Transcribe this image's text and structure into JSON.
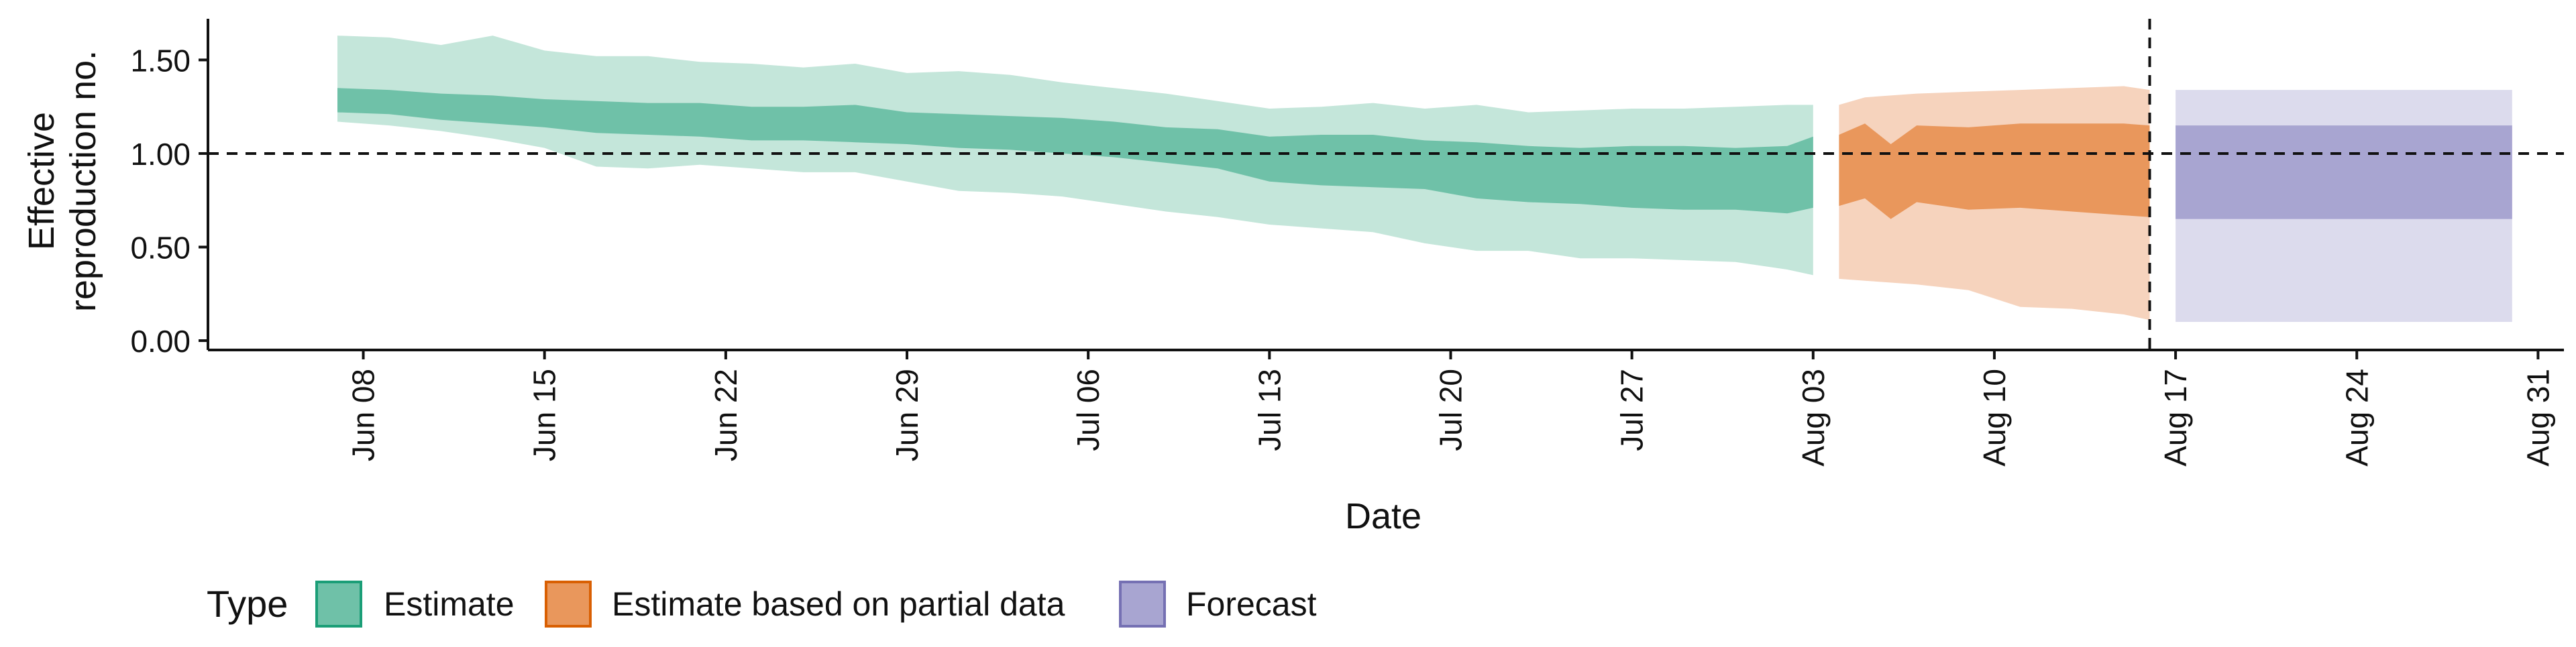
{
  "chart_data": {
    "type": "area",
    "xlabel": "Date",
    "ylabel_lines": [
      "Effective",
      "reproduction no."
    ],
    "x_axis_type": "date",
    "xlim": [
      "2020-06-02",
      "2020-09-01"
    ],
    "ylim": [
      -0.05,
      1.72
    ],
    "x_ticks": [
      {
        "date": "2020-06-08",
        "label": "Jun 08"
      },
      {
        "date": "2020-06-15",
        "label": "Jun 15"
      },
      {
        "date": "2020-06-22",
        "label": "Jun 22"
      },
      {
        "date": "2020-06-29",
        "label": "Jun 29"
      },
      {
        "date": "2020-07-06",
        "label": "Jul 06"
      },
      {
        "date": "2020-07-13",
        "label": "Jul 13"
      },
      {
        "date": "2020-07-20",
        "label": "Jul 20"
      },
      {
        "date": "2020-07-27",
        "label": "Jul 27"
      },
      {
        "date": "2020-08-03",
        "label": "Aug 03"
      },
      {
        "date": "2020-08-10",
        "label": "Aug 10"
      },
      {
        "date": "2020-08-17",
        "label": "Aug 17"
      },
      {
        "date": "2020-08-24",
        "label": "Aug 24"
      },
      {
        "date": "2020-08-31",
        "label": "Aug 31"
      }
    ],
    "y_ticks": [
      {
        "value": 0.0,
        "label": "0.00"
      },
      {
        "value": 0.5,
        "label": "0.50"
      },
      {
        "value": 1.0,
        "label": "1.00"
      },
      {
        "value": 1.5,
        "label": "1.50"
      }
    ],
    "reference_line_y": 1.0,
    "reference_line_x": "2020-08-16",
    "grid": false,
    "legend": {
      "title": "Type",
      "position": "bottom-left",
      "entries": [
        {
          "name": "Estimate",
          "fill": "#6fc1a8",
          "stroke": "#1b9e77"
        },
        {
          "name": "Estimate based on partial data",
          "fill": "#e9975c",
          "stroke": "#d95f02"
        },
        {
          "name": "Forecast",
          "fill": "#a8a5d1",
          "stroke": "#7570b3"
        }
      ]
    },
    "series": [
      {
        "name": "Estimate",
        "fill_inner": "#6fc1a8",
        "fill_outer": "#c4e6da",
        "points": [
          {
            "date": "2020-06-07",
            "outer_low": 1.17,
            "inner_low": 1.22,
            "inner_high": 1.35,
            "outer_high": 1.63
          },
          {
            "date": "2020-06-09",
            "outer_low": 1.15,
            "inner_low": 1.21,
            "inner_high": 1.34,
            "outer_high": 1.62
          },
          {
            "date": "2020-06-11",
            "outer_low": 1.12,
            "inner_low": 1.18,
            "inner_high": 1.32,
            "outer_high": 1.58
          },
          {
            "date": "2020-06-13",
            "outer_low": 1.08,
            "inner_low": 1.16,
            "inner_high": 1.31,
            "outer_high": 1.63
          },
          {
            "date": "2020-06-15",
            "outer_low": 1.03,
            "inner_low": 1.14,
            "inner_high": 1.29,
            "outer_high": 1.55
          },
          {
            "date": "2020-06-17",
            "outer_low": 0.93,
            "inner_low": 1.11,
            "inner_high": 1.28,
            "outer_high": 1.52
          },
          {
            "date": "2020-06-19",
            "outer_low": 0.92,
            "inner_low": 1.1,
            "inner_high": 1.27,
            "outer_high": 1.52
          },
          {
            "date": "2020-06-21",
            "outer_low": 0.94,
            "inner_low": 1.09,
            "inner_high": 1.27,
            "outer_high": 1.49
          },
          {
            "date": "2020-06-23",
            "outer_low": 0.92,
            "inner_low": 1.07,
            "inner_high": 1.25,
            "outer_high": 1.48
          },
          {
            "date": "2020-06-25",
            "outer_low": 0.9,
            "inner_low": 1.07,
            "inner_high": 1.25,
            "outer_high": 1.46
          },
          {
            "date": "2020-06-27",
            "outer_low": 0.9,
            "inner_low": 1.06,
            "inner_high": 1.26,
            "outer_high": 1.48
          },
          {
            "date": "2020-06-29",
            "outer_low": 0.85,
            "inner_low": 1.05,
            "inner_high": 1.22,
            "outer_high": 1.43
          },
          {
            "date": "2020-07-01",
            "outer_low": 0.8,
            "inner_low": 1.03,
            "inner_high": 1.21,
            "outer_high": 1.44
          },
          {
            "date": "2020-07-03",
            "outer_low": 0.79,
            "inner_low": 1.02,
            "inner_high": 1.2,
            "outer_high": 1.42
          },
          {
            "date": "2020-07-05",
            "outer_low": 0.77,
            "inner_low": 1.0,
            "inner_high": 1.19,
            "outer_high": 1.38
          },
          {
            "date": "2020-07-07",
            "outer_low": 0.73,
            "inner_low": 0.98,
            "inner_high": 1.17,
            "outer_high": 1.35
          },
          {
            "date": "2020-07-09",
            "outer_low": 0.69,
            "inner_low": 0.95,
            "inner_high": 1.14,
            "outer_high": 1.32
          },
          {
            "date": "2020-07-11",
            "outer_low": 0.66,
            "inner_low": 0.92,
            "inner_high": 1.13,
            "outer_high": 1.28
          },
          {
            "date": "2020-07-13",
            "outer_low": 0.62,
            "inner_low": 0.85,
            "inner_high": 1.09,
            "outer_high": 1.24
          },
          {
            "date": "2020-07-15",
            "outer_low": 0.6,
            "inner_low": 0.83,
            "inner_high": 1.1,
            "outer_high": 1.25
          },
          {
            "date": "2020-07-17",
            "outer_low": 0.58,
            "inner_low": 0.82,
            "inner_high": 1.1,
            "outer_high": 1.27
          },
          {
            "date": "2020-07-19",
            "outer_low": 0.52,
            "inner_low": 0.81,
            "inner_high": 1.07,
            "outer_high": 1.24
          },
          {
            "date": "2020-07-21",
            "outer_low": 0.48,
            "inner_low": 0.76,
            "inner_high": 1.06,
            "outer_high": 1.26
          },
          {
            "date": "2020-07-23",
            "outer_low": 0.48,
            "inner_low": 0.74,
            "inner_high": 1.04,
            "outer_high": 1.22
          },
          {
            "date": "2020-07-25",
            "outer_low": 0.44,
            "inner_low": 0.73,
            "inner_high": 1.03,
            "outer_high": 1.23
          },
          {
            "date": "2020-07-27",
            "outer_low": 0.44,
            "inner_low": 0.71,
            "inner_high": 1.04,
            "outer_high": 1.24
          },
          {
            "date": "2020-07-29",
            "outer_low": 0.43,
            "inner_low": 0.7,
            "inner_high": 1.04,
            "outer_high": 1.24
          },
          {
            "date": "2020-07-31",
            "outer_low": 0.42,
            "inner_low": 0.7,
            "inner_high": 1.03,
            "outer_high": 1.25
          },
          {
            "date": "2020-08-02",
            "outer_low": 0.38,
            "inner_low": 0.68,
            "inner_high": 1.04,
            "outer_high": 1.26
          },
          {
            "date": "2020-08-03",
            "outer_low": 0.35,
            "inner_low": 0.71,
            "inner_high": 1.09,
            "outer_high": 1.26
          }
        ]
      },
      {
        "name": "Estimate based on partial data",
        "fill_inner": "#e9975c",
        "fill_outer": "#f6d3bd",
        "points": [
          {
            "date": "2020-08-04",
            "outer_low": 0.33,
            "inner_low": 0.72,
            "inner_high": 1.1,
            "outer_high": 1.26
          },
          {
            "date": "2020-08-05",
            "outer_low": 0.32,
            "inner_low": 0.76,
            "inner_high": 1.16,
            "outer_high": 1.3
          },
          {
            "date": "2020-08-06",
            "outer_low": 0.31,
            "inner_low": 0.65,
            "inner_high": 1.05,
            "outer_high": 1.31
          },
          {
            "date": "2020-08-07",
            "outer_low": 0.3,
            "inner_low": 0.74,
            "inner_high": 1.15,
            "outer_high": 1.32
          },
          {
            "date": "2020-08-09",
            "outer_low": 0.27,
            "inner_low": 0.7,
            "inner_high": 1.14,
            "outer_high": 1.33
          },
          {
            "date": "2020-08-11",
            "outer_low": 0.18,
            "inner_low": 0.71,
            "inner_high": 1.16,
            "outer_high": 1.34
          },
          {
            "date": "2020-08-13",
            "outer_low": 0.17,
            "inner_low": 0.69,
            "inner_high": 1.16,
            "outer_high": 1.35
          },
          {
            "date": "2020-08-15",
            "outer_low": 0.14,
            "inner_low": 0.67,
            "inner_high": 1.16,
            "outer_high": 1.36
          },
          {
            "date": "2020-08-16",
            "outer_low": 0.11,
            "inner_low": 0.66,
            "inner_high": 1.15,
            "outer_high": 1.34
          }
        ]
      },
      {
        "name": "Forecast",
        "fill_inner": "#a8a5d1",
        "fill_outer": "#dcdbed",
        "points": [
          {
            "date": "2020-08-17",
            "outer_low": 0.1,
            "inner_low": 0.65,
            "inner_high": 1.15,
            "outer_high": 1.34
          },
          {
            "date": "2020-08-30",
            "outer_low": 0.1,
            "inner_low": 0.65,
            "inner_high": 1.15,
            "outer_high": 1.34
          }
        ]
      }
    ]
  }
}
